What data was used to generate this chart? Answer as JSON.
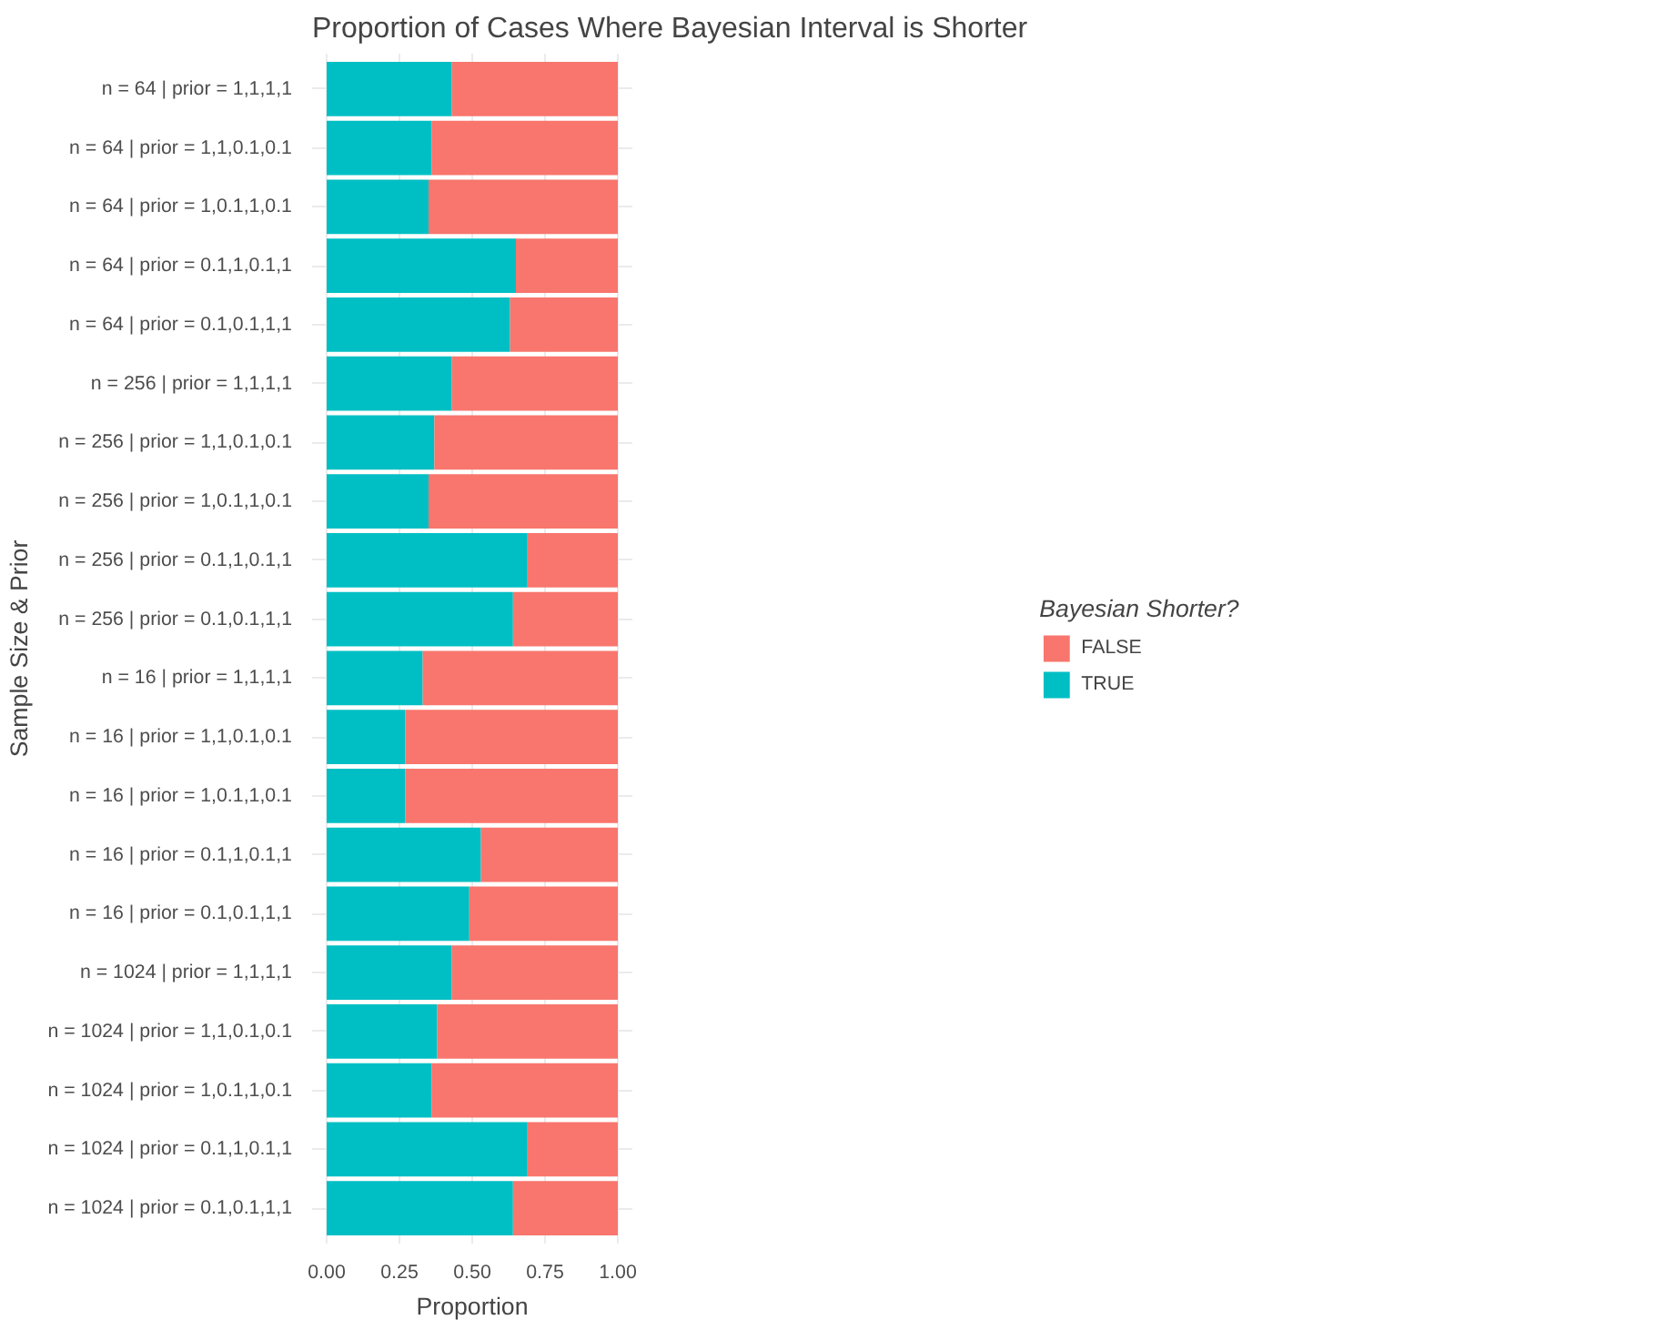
{
  "chart_data": {
    "type": "bar",
    "orientation": "horizontal",
    "stacked": true,
    "title": "Proportion of Cases Where Bayesian Interval is Shorter",
    "xlabel": "Proportion",
    "ylabel": "Sample Size & Prior",
    "legend_title": "Bayesian Shorter?",
    "categories": [
      "n = 64 | prior = 1,1,1,1",
      "n = 64 | prior = 1,1,0.1,0.1",
      "n = 64 | prior = 1,0.1,1,0.1",
      "n = 64 | prior = 0.1,1,0.1,1",
      "n = 64 | prior = 0.1,0.1,1,1",
      "n = 256 | prior = 1,1,1,1",
      "n = 256 | prior = 1,1,0.1,0.1",
      "n = 256 | prior = 1,0.1,1,0.1",
      "n = 256 | prior = 0.1,1,0.1,1",
      "n = 256 | prior = 0.1,0.1,1,1",
      "n = 16 | prior = 1,1,1,1",
      "n = 16 | prior = 1,1,0.1,0.1",
      "n = 16 | prior = 1,0.1,1,0.1",
      "n = 16 | prior = 0.1,1,0.1,1",
      "n = 16 | prior = 0.1,0.1,1,1",
      "n = 1024 | prior = 1,1,1,1",
      "n = 1024 | prior = 1,1,0.1,0.1",
      "n = 1024 | prior = 1,0.1,1,0.1",
      "n = 1024 | prior = 0.1,1,0.1,1",
      "n = 1024 | prior = 0.1,0.1,1,1"
    ],
    "series": [
      {
        "name": "TRUE",
        "color": "#00bfc4",
        "values": [
          0.43,
          0.36,
          0.35,
          0.65,
          0.63,
          0.43,
          0.37,
          0.35,
          0.69,
          0.64,
          0.33,
          0.27,
          0.27,
          0.53,
          0.49,
          0.43,
          0.38,
          0.36,
          0.69,
          0.64
        ]
      },
      {
        "name": "FALSE",
        "color": "#f8766d",
        "values": [
          0.57,
          0.64,
          0.65,
          0.35,
          0.37,
          0.57,
          0.63,
          0.65,
          0.31,
          0.36,
          0.67,
          0.73,
          0.73,
          0.47,
          0.51,
          0.57,
          0.62,
          0.64,
          0.31,
          0.36
        ]
      }
    ],
    "xlim": [
      -0.05,
      1.05
    ],
    "xticks": [
      {
        "value": 0,
        "label": "0.00"
      },
      {
        "value": 0.25,
        "label": "0.25"
      },
      {
        "value": 0.5,
        "label": "0.50"
      },
      {
        "value": 0.75,
        "label": "0.75"
      },
      {
        "value": 1,
        "label": "1.00"
      }
    ],
    "grid": true,
    "legend": "right"
  }
}
